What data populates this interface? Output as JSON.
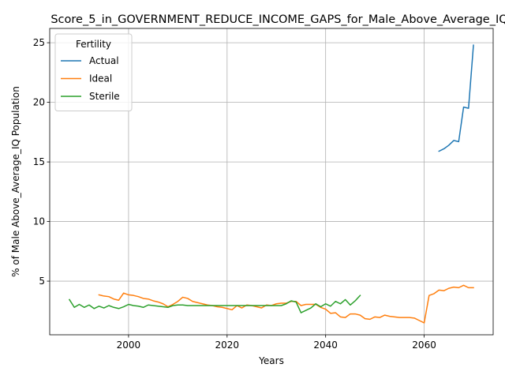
{
  "chart_data": {
    "type": "line",
    "title": "Score_5_in_GOVERNMENT_REDUCE_INCOME_GAPS_for_Male_Above_Average_IQ",
    "xlabel": "Years",
    "ylabel": "% of Male Above_Average_IQ Population",
    "xlim": [
      1984,
      2074
    ],
    "ylim": [
      0.5,
      26.2
    ],
    "xticks": [
      2000,
      2020,
      2040,
      2060
    ],
    "yticks": [
      5,
      10,
      15,
      20,
      25
    ],
    "grid": true,
    "legend": {
      "title": "Fertility",
      "placement": "top-left"
    },
    "series": [
      {
        "name": "Actual",
        "color": "#1f77b4",
        "x": [
          2063,
          2064,
          2065,
          2066,
          2067,
          2068,
          2069,
          2070
        ],
        "y": [
          15.9,
          16.1,
          16.4,
          16.8,
          16.7,
          19.6,
          19.5,
          24.8
        ]
      },
      {
        "name": "Ideal",
        "color": "#ff7f0e",
        "x": [
          1994,
          1995,
          1996,
          1997,
          1998,
          1999,
          2000,
          2001,
          2002,
          2003,
          2004,
          2005,
          2006,
          2007,
          2008,
          2009,
          2010,
          2011,
          2012,
          2013,
          2014,
          2015,
          2016,
          2017,
          2018,
          2019,
          2020,
          2021,
          2022,
          2023,
          2024,
          2025,
          2026,
          2027,
          2028,
          2029,
          2030,
          2031,
          2032,
          2033,
          2034,
          2035,
          2036,
          2037,
          2038,
          2039,
          2040,
          2041,
          2042,
          2043,
          2044,
          2045,
          2046,
          2047,
          2048,
          2049,
          2050,
          2051,
          2052,
          2053,
          2054,
          2055,
          2056,
          2057,
          2058,
          2059,
          2060,
          2061,
          2062,
          2063,
          2064,
          2065,
          2066,
          2067,
          2068,
          2069,
          2070
        ],
        "y": [
          3.85,
          3.75,
          3.7,
          3.5,
          3.4,
          4.0,
          3.85,
          3.8,
          3.7,
          3.55,
          3.5,
          3.35,
          3.25,
          3.1,
          2.85,
          3.05,
          3.3,
          3.65,
          3.55,
          3.3,
          3.2,
          3.1,
          3.0,
          2.95,
          2.85,
          2.8,
          2.7,
          2.6,
          2.95,
          2.75,
          3.0,
          2.95,
          2.85,
          2.75,
          3.0,
          2.95,
          3.1,
          3.15,
          3.15,
          3.3,
          3.3,
          2.95,
          3.05,
          3.05,
          3.05,
          2.8,
          2.65,
          2.3,
          2.35,
          2.0,
          1.95,
          2.25,
          2.25,
          2.15,
          1.85,
          1.8,
          2.0,
          1.95,
          2.15,
          2.05,
          2.0,
          1.95,
          1.95,
          1.95,
          1.9,
          1.7,
          1.5,
          3.8,
          3.95,
          4.25,
          4.2,
          4.4,
          4.5,
          4.45,
          4.65,
          4.45,
          4.45
        ]
      },
      {
        "name": "Sterile",
        "color": "#2ca02c",
        "x": [
          1988,
          1989,
          1990,
          1991,
          1992,
          1993,
          1994,
          1995,
          1996,
          1997,
          1998,
          1999,
          2000,
          2001,
          2002,
          2003,
          2004,
          2005,
          2006,
          2007,
          2008,
          2009,
          2010,
          2011,
          2012,
          2013,
          2014,
          2015,
          2016,
          2017,
          2018,
          2019,
          2020,
          2021,
          2022,
          2023,
          2024,
          2025,
          2026,
          2027,
          2028,
          2029,
          2030,
          2031,
          2032,
          2033,
          2034,
          2035,
          2036,
          2037,
          2038,
          2039,
          2040,
          2041,
          2042,
          2043,
          2044,
          2045,
          2046,
          2047
        ],
        "y": [
          3.45,
          2.8,
          3.05,
          2.8,
          3.0,
          2.7,
          2.9,
          2.75,
          2.95,
          2.8,
          2.7,
          2.85,
          3.05,
          2.95,
          2.9,
          2.8,
          3.0,
          2.95,
          2.9,
          2.85,
          2.8,
          2.95,
          3.0,
          3.0,
          2.95,
          2.95,
          2.95,
          2.95,
          2.95,
          2.95,
          2.95,
          2.95,
          2.95,
          2.95,
          2.95,
          2.95,
          2.95,
          2.95,
          2.95,
          2.95,
          2.95,
          2.95,
          2.95,
          2.95,
          3.1,
          3.35,
          3.25,
          2.35,
          2.55,
          2.75,
          3.1,
          2.85,
          3.1,
          2.9,
          3.3,
          3.1,
          3.45,
          3.0,
          3.35,
          3.8
        ]
      }
    ]
  }
}
